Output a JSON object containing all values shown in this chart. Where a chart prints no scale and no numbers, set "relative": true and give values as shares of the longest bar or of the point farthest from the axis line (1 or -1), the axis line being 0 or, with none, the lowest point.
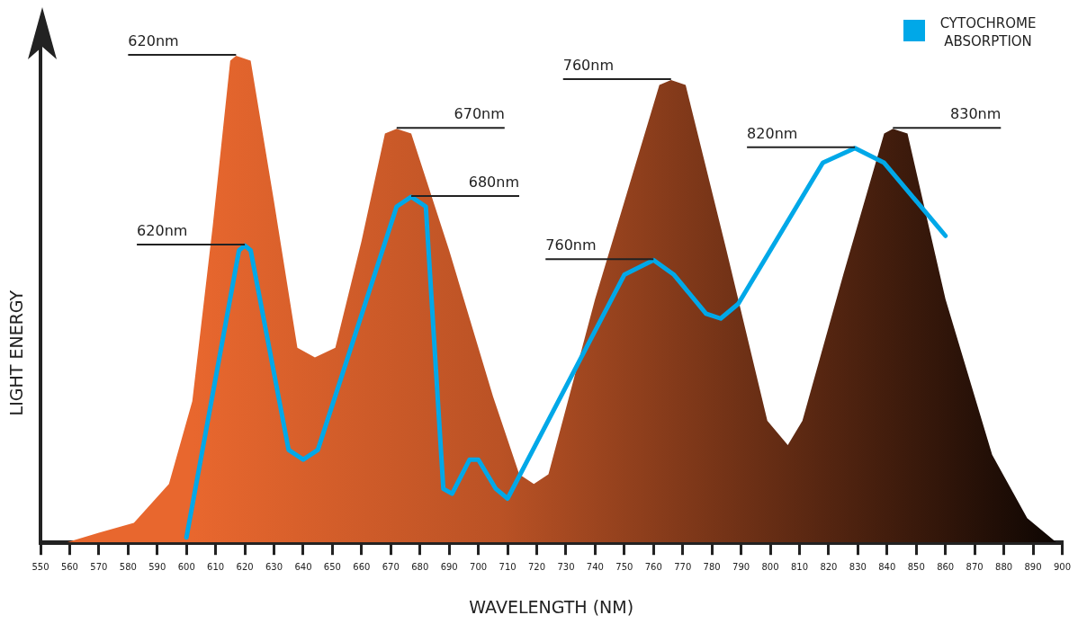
{
  "chart_data": {
    "type": "area",
    "xlabel": "WAVELENGTH (NM)",
    "ylabel": "LIGHT ENERGY",
    "relative": true,
    "xlim": [
      550,
      900
    ],
    "xticks": [
      550,
      560,
      570,
      580,
      590,
      600,
      610,
      620,
      630,
      640,
      650,
      660,
      670,
      680,
      690,
      700,
      710,
      720,
      730,
      740,
      750,
      760,
      770,
      780,
      790,
      800,
      810,
      820,
      830,
      840,
      850,
      860,
      870,
      880,
      890,
      900
    ],
    "grid": false,
    "legend": "top right",
    "marker": "none",
    "line_style": "solid",
    "series": [
      {
        "type": "area",
        "color": "#e8672e",
        "x": [
          559,
          570,
          582,
          594,
          602,
          609,
          615,
          617,
          622,
          630,
          638,
          644,
          651,
          660,
          668,
          672,
          677,
          690,
          705,
          714,
          719,
          724,
          740,
          755,
          762,
          766,
          771,
          785,
          799,
          806,
          811,
          825,
          839,
          842,
          847,
          860,
          876,
          888,
          898
        ],
        "values": [
          0,
          0.02,
          0.04,
          0.12,
          0.29,
          0.65,
          0.99,
          1,
          0.99,
          0.7,
          0.4,
          0.38,
          0.4,
          0.62,
          0.84,
          0.85,
          0.84,
          0.6,
          0.3,
          0.14,
          0.12,
          0.14,
          0.5,
          0.8,
          0.94,
          0.95,
          0.94,
          0.6,
          0.25,
          0.2,
          0.25,
          0.55,
          0.84,
          0.85,
          0.84,
          0.5,
          0.18,
          0.05,
          0
        ]
      },
      {
        "type": "line",
        "name": "CYTOCHROME ABSORPTION",
        "color": "#00a8e8",
        "x": [
          600,
          618,
          620,
          622,
          635,
          640,
          645,
          672,
          677,
          682,
          688,
          691,
          697,
          700,
          706,
          710,
          750,
          760,
          767,
          778,
          783,
          789,
          818,
          829,
          839,
          860
        ],
        "values": [
          0.01,
          0.6,
          0.61,
          0.6,
          0.19,
          0.17,
          0.19,
          0.69,
          0.71,
          0.69,
          0.11,
          0.1,
          0.17,
          0.17,
          0.11,
          0.09,
          0.55,
          0.58,
          0.55,
          0.47,
          0.46,
          0.49,
          0.78,
          0.81,
          0.78,
          0.63
        ]
      }
    ],
    "annotations": [
      {
        "text": "620nm",
        "x": 617,
        "y": 1
      },
      {
        "text": "670nm",
        "x": 672,
        "y": 0.85
      },
      {
        "text": "760nm",
        "x": 766,
        "y": 0.95
      },
      {
        "text": "830nm",
        "x": 842,
        "y": 0.85
      },
      {
        "text": "620nm",
        "x": 620,
        "y": 0.61
      },
      {
        "text": "680nm",
        "x": 677,
        "y": 0.71
      },
      {
        "text": "820nm",
        "x": 829,
        "y": 0.81
      },
      {
        "text": "760nm",
        "x": 760,
        "y": 0.58
      }
    ]
  }
}
